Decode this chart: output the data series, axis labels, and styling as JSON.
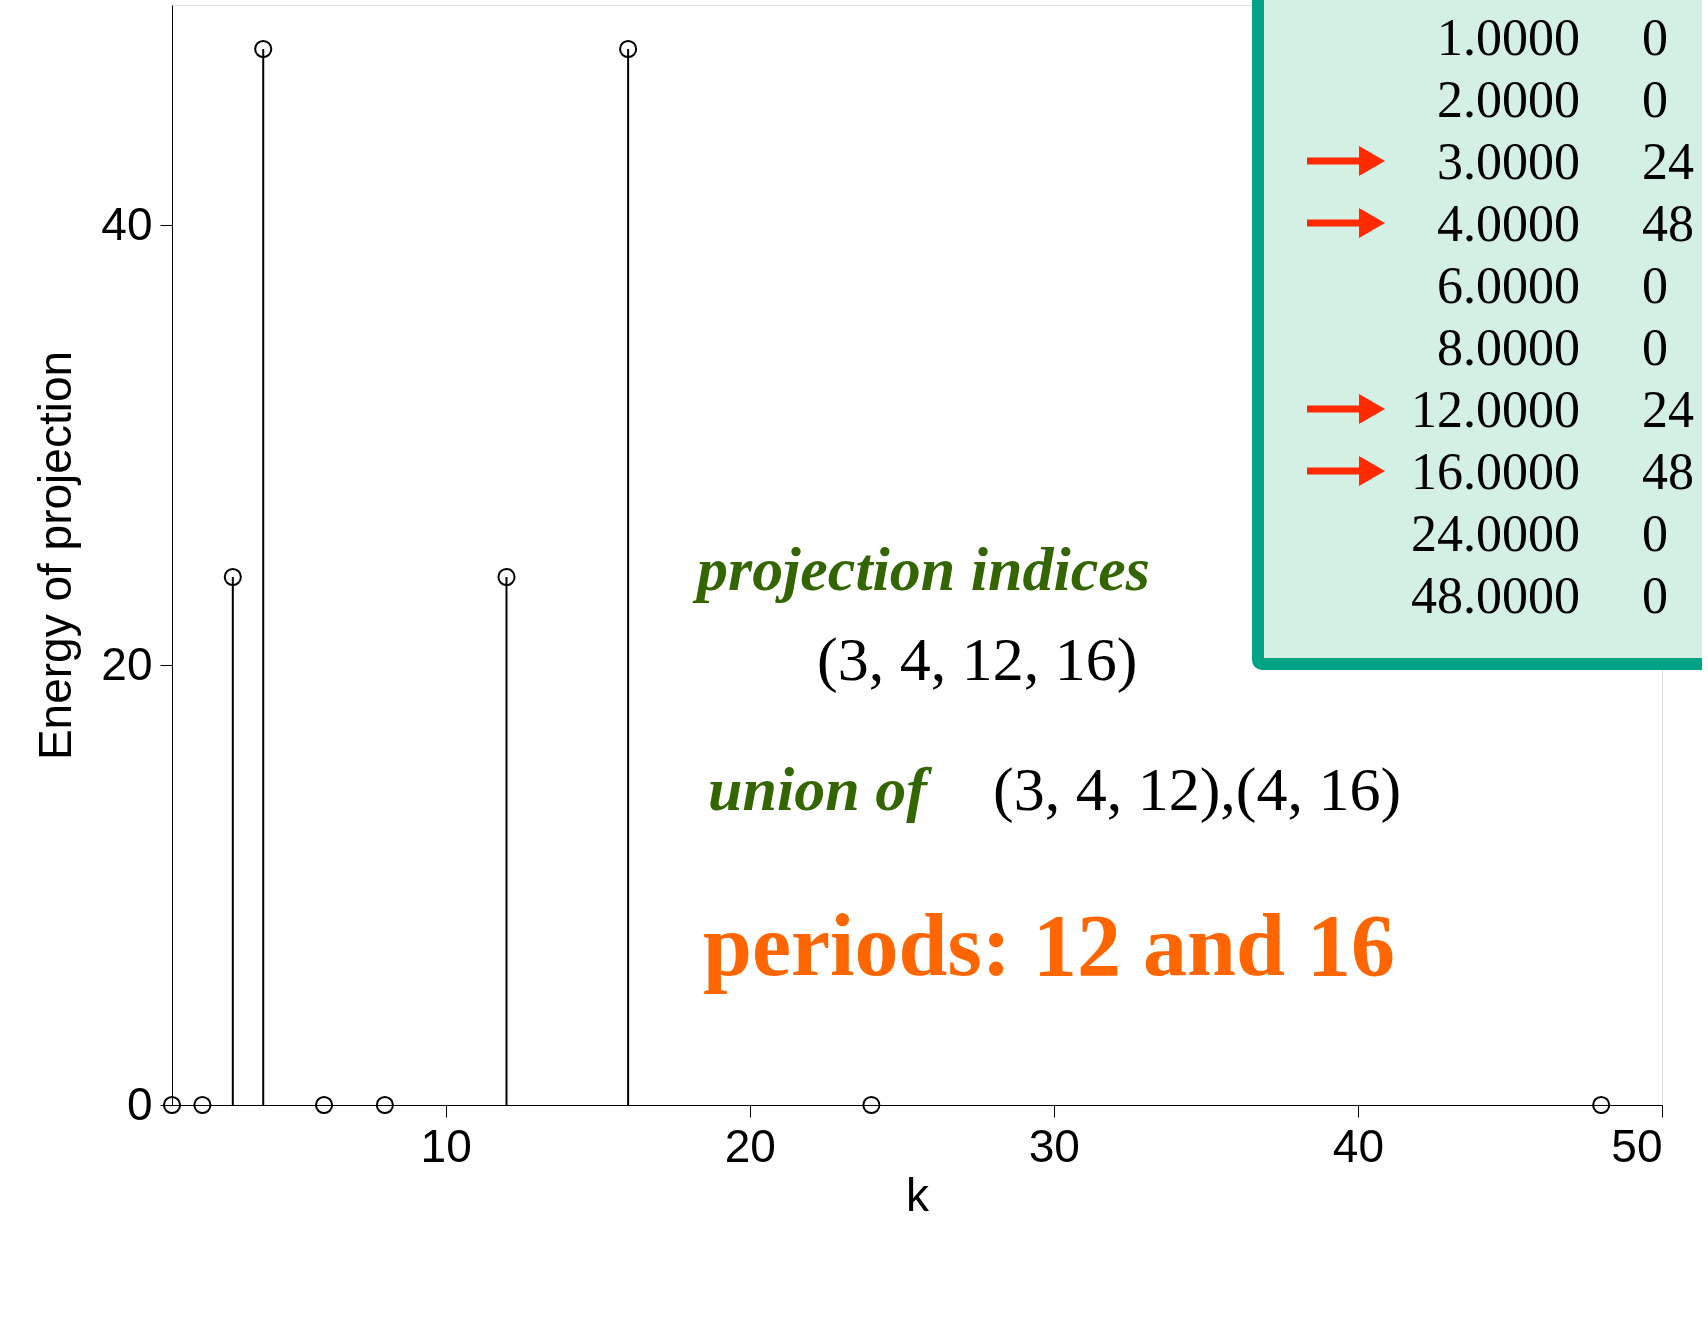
{
  "chart_data": {
    "type": "lollipop",
    "xlabel": "k",
    "ylabel": "Energy of projection",
    "x": [
      1,
      2,
      3,
      4,
      6,
      8,
      12,
      16,
      24,
      48
    ],
    "series": [
      {
        "color": "#000000",
        "values": [
          0,
          0,
          24,
          48,
          0,
          0,
          24,
          48,
          0,
          0
        ]
      }
    ],
    "xlim": [
      1,
      50
    ],
    "xticks": [
      10,
      20,
      30,
      40,
      50
    ],
    "ylim": [
      0,
      50
    ],
    "yticks": [
      0,
      20,
      40
    ],
    "marker": "circle",
    "grid": false,
    "annotations": [
      "projection indices",
      "(3, 4, 12, 16)",
      "union of",
      "(3, 4, 12),(4, 16)",
      "periods: 12 and 16",
      "1.0000",
      "0",
      "2.0000",
      "0",
      "3.0000",
      "24",
      "4.0000",
      "48",
      "6.0000",
      "0",
      "8.0000",
      "0",
      "12.0000",
      "24",
      "16.0000",
      "48",
      "24.0000",
      "0",
      "48.0000",
      "0"
    ]
  }
}
